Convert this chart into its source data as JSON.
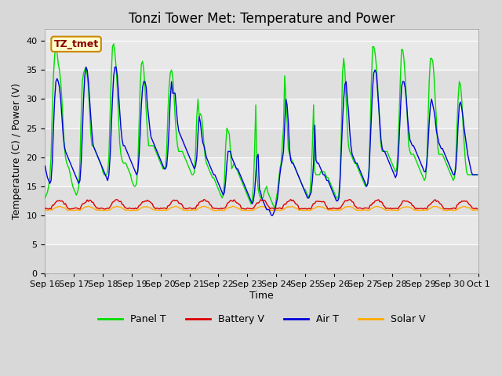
{
  "title": "Tonzi Tower Met: Temperature and Power",
  "ylabel": "Temperature (C) / Power (V)",
  "xlabel": "Time",
  "legend_label": "TZ_tmet",
  "ylim": [
    0,
    42
  ],
  "yticks": [
    0,
    5,
    10,
    15,
    20,
    25,
    30,
    35,
    40
  ],
  "xtick_labels": [
    "Sep 16",
    "Sep 17",
    "Sep 18",
    "Sep 19",
    "Sep 20",
    "Sep 21",
    "Sep 22",
    "Sep 23",
    "Sep 24",
    "Sep 25",
    "Sep 26",
    "Sep 27",
    "Sep 28",
    "Sep 29",
    "Sep 30",
    "Oct 1"
  ],
  "n_days": 15,
  "pts_per_day": 24,
  "panel_t_daily": [
    [
      13.0,
      13.5,
      14.0,
      15.0,
      16.5,
      20.0,
      28.0,
      34.0,
      37.5,
      39.0,
      38.0,
      36.0,
      35.0,
      33.0,
      30.0,
      26.0,
      22.0,
      20.0,
      19.0,
      18.5,
      18.0,
      17.0,
      16.0,
      15.0
    ],
    [
      14.5,
      14.0,
      13.5,
      14.0,
      15.0,
      19.0,
      27.0,
      33.0,
      34.5,
      35.0,
      35.5,
      34.0,
      32.0,
      28.0,
      24.0,
      22.0,
      22.0,
      21.5,
      21.0,
      20.5,
      20.0,
      19.5,
      19.0,
      18.5
    ],
    [
      17.5,
      17.0,
      17.0,
      17.0,
      17.5,
      20.0,
      27.0,
      34.0,
      39.0,
      39.5,
      38.0,
      35.5,
      32.0,
      27.0,
      22.5,
      20.5,
      19.5,
      19.0,
      19.0,
      19.0,
      18.5,
      18.0,
      17.5,
      17.0
    ],
    [
      16.0,
      15.5,
      15.0,
      15.0,
      15.5,
      18.0,
      25.0,
      32.0,
      36.0,
      36.5,
      35.0,
      32.0,
      28.0,
      24.5,
      22.0,
      22.0,
      22.0,
      22.0,
      22.0,
      21.5,
      21.0,
      20.5,
      20.0,
      19.5
    ],
    [
      19.0,
      18.5,
      18.0,
      18.0,
      18.5,
      21.0,
      27.5,
      32.0,
      34.5,
      35.0,
      34.0,
      31.0,
      27.0,
      24.0,
      22.0,
      21.0,
      21.0,
      21.0,
      21.0,
      20.5,
      20.0,
      19.5,
      19.0,
      18.5
    ],
    [
      18.0,
      17.5,
      17.0,
      17.0,
      17.5,
      21.0,
      27.0,
      30.0,
      27.0,
      27.5,
      27.0,
      25.0,
      22.0,
      20.0,
      19.0,
      18.5,
      18.0,
      17.5,
      17.0,
      16.5,
      16.5,
      16.0,
      15.5,
      15.0
    ],
    [
      14.5,
      14.0,
      13.5,
      13.0,
      13.5,
      16.0,
      22.0,
      25.0,
      24.5,
      24.0,
      21.0,
      18.0,
      18.5,
      19.0,
      18.5,
      18.0,
      17.5,
      17.0,
      16.5,
      16.0,
      15.5,
      15.0,
      14.5,
      14.0
    ],
    [
      13.5,
      13.0,
      12.5,
      12.0,
      12.5,
      15.0,
      21.0,
      29.0,
      17.0,
      14.5,
      13.5,
      13.0,
      13.0,
      13.0,
      14.0,
      14.5,
      15.0,
      14.0,
      13.5,
      13.0,
      12.5,
      12.0,
      11.5,
      11.0
    ],
    [
      13.0,
      14.0,
      16.0,
      18.0,
      19.0,
      22.0,
      25.0,
      34.0,
      30.0,
      26.0,
      21.5,
      20.5,
      20.0,
      19.5,
      19.0,
      18.5,
      18.0,
      17.5,
      17.0,
      16.5,
      16.0,
      15.5,
      15.0,
      14.5
    ],
    [
      14.5,
      14.0,
      13.5,
      13.0,
      14.0,
      17.0,
      22.0,
      29.0,
      17.5,
      17.0,
      17.0,
      17.0,
      17.0,
      17.5,
      17.5,
      17.5,
      17.5,
      17.0,
      16.5,
      16.5,
      16.0,
      15.5,
      15.0,
      14.5
    ],
    [
      14.0,
      13.5,
      13.0,
      13.0,
      13.5,
      17.0,
      24.0,
      34.5,
      37.0,
      35.0,
      30.0,
      25.0,
      22.0,
      21.0,
      20.5,
      20.0,
      19.5,
      19.0,
      19.0,
      18.5,
      18.0,
      17.5,
      17.0,
      16.5
    ],
    [
      16.0,
      15.5,
      15.0,
      15.0,
      15.5,
      18.0,
      25.0,
      33.0,
      39.0,
      39.0,
      38.0,
      36.0,
      33.0,
      29.0,
      25.0,
      22.0,
      21.0,
      21.0,
      21.0,
      21.0,
      21.0,
      20.5,
      20.0,
      19.5
    ],
    [
      19.0,
      18.5,
      18.0,
      17.5,
      18.0,
      21.0,
      27.0,
      33.0,
      38.5,
      38.5,
      37.0,
      34.0,
      30.5,
      26.0,
      22.0,
      21.0,
      20.5,
      20.5,
      20.5,
      20.0,
      19.5,
      19.0,
      18.5,
      18.0
    ],
    [
      17.5,
      17.0,
      16.5,
      16.0,
      16.5,
      19.0,
      26.0,
      33.0,
      37.0,
      37.0,
      36.5,
      34.0,
      30.0,
      26.5,
      22.0,
      20.5,
      20.5,
      20.5,
      20.5,
      20.0,
      19.5,
      19.0,
      18.5,
      18.0
    ],
    [
      17.5,
      17.0,
      16.5,
      16.0,
      16.5,
      19.0,
      25.0,
      30.0,
      33.0,
      32.5,
      30.0,
      26.0,
      22.5,
      19.5,
      17.5,
      17.0,
      17.0,
      17.0,
      17.0,
      17.0,
      17.0,
      17.0,
      17.0,
      17.0
    ]
  ],
  "air_t_daily": [
    [
      18.5,
      17.5,
      16.5,
      16.0,
      15.5,
      16.0,
      19.0,
      25.0,
      30.0,
      33.0,
      33.5,
      33.0,
      32.0,
      30.0,
      27.0,
      24.0,
      22.0,
      21.0,
      20.5,
      20.0,
      19.5,
      19.0,
      18.5,
      18.0
    ],
    [
      17.5,
      17.0,
      16.5,
      16.0,
      15.5,
      16.0,
      19.0,
      24.0,
      30.0,
      34.0,
      35.5,
      35.0,
      33.0,
      30.0,
      27.0,
      24.0,
      22.0,
      21.5,
      21.0,
      20.5,
      20.0,
      19.5,
      19.0,
      18.5
    ],
    [
      18.0,
      17.5,
      17.0,
      16.5,
      16.0,
      17.0,
      20.0,
      25.0,
      30.0,
      34.0,
      35.5,
      35.5,
      34.0,
      31.0,
      28.0,
      25.0,
      23.0,
      22.0,
      22.0,
      21.5,
      21.0,
      20.5,
      20.0,
      19.5
    ],
    [
      19.0,
      18.5,
      18.0,
      17.5,
      17.0,
      17.5,
      20.0,
      24.0,
      29.0,
      32.0,
      33.0,
      33.0,
      32.0,
      29.0,
      27.0,
      25.0,
      23.5,
      23.0,
      22.5,
      22.0,
      21.5,
      21.0,
      20.5,
      20.0
    ],
    [
      19.5,
      19.0,
      18.5,
      18.0,
      18.0,
      18.5,
      21.0,
      25.0,
      30.0,
      33.0,
      31.0,
      31.0,
      31.0,
      28.5,
      26.0,
      24.5,
      24.0,
      23.5,
      23.0,
      22.5,
      22.0,
      21.5,
      21.0,
      20.5
    ],
    [
      20.0,
      19.5,
      19.0,
      18.5,
      18.0,
      18.5,
      20.0,
      24.0,
      27.0,
      26.0,
      24.0,
      22.5,
      22.0,
      21.0,
      20.0,
      19.5,
      19.0,
      18.5,
      18.0,
      17.5,
      17.0,
      17.0,
      16.5,
      16.0
    ],
    [
      15.5,
      15.0,
      14.5,
      14.0,
      13.5,
      14.0,
      16.0,
      19.0,
      21.0,
      21.0,
      21.0,
      20.0,
      19.5,
      19.0,
      18.5,
      18.0,
      18.0,
      17.5,
      17.0,
      16.5,
      16.0,
      15.5,
      15.0,
      14.5
    ],
    [
      14.0,
      13.5,
      13.0,
      12.5,
      12.0,
      12.5,
      14.0,
      17.0,
      20.0,
      20.5,
      14.5,
      14.0,
      13.0,
      12.5,
      12.0,
      11.5,
      11.0,
      11.0,
      11.0,
      10.5,
      10.0,
      10.0,
      10.5,
      11.0
    ],
    [
      12.0,
      13.0,
      15.0,
      17.0,
      18.5,
      19.5,
      21.0,
      25.5,
      30.0,
      29.0,
      26.0,
      21.5,
      19.5,
      19.0,
      19.0,
      18.5,
      18.0,
      17.5,
      17.0,
      16.5,
      16.0,
      15.5,
      15.0,
      14.5
    ],
    [
      14.0,
      13.5,
      13.0,
      13.0,
      13.5,
      14.0,
      16.0,
      19.0,
      25.5,
      19.5,
      19.0,
      19.0,
      18.5,
      18.0,
      17.5,
      17.0,
      17.0,
      16.5,
      16.0,
      16.0,
      15.5,
      15.0,
      14.5,
      14.0
    ],
    [
      13.5,
      13.0,
      12.5,
      12.5,
      13.0,
      16.0,
      21.0,
      26.0,
      30.0,
      32.5,
      33.0,
      30.0,
      28.0,
      24.5,
      22.0,
      20.5,
      20.0,
      19.5,
      19.0,
      19.0,
      18.5,
      18.0,
      17.5,
      17.0
    ],
    [
      16.5,
      16.0,
      15.5,
      15.0,
      15.5,
      17.5,
      22.0,
      27.0,
      32.0,
      34.5,
      35.0,
      34.5,
      32.0,
      29.0,
      26.0,
      23.0,
      21.5,
      21.0,
      21.0,
      20.5,
      20.0,
      19.5,
      19.0,
      18.5
    ],
    [
      18.0,
      17.5,
      17.0,
      16.5,
      17.0,
      19.0,
      23.0,
      27.5,
      32.0,
      33.0,
      33.0,
      32.0,
      30.0,
      27.0,
      24.5,
      23.0,
      22.5,
      22.0,
      22.0,
      21.5,
      21.0,
      20.5,
      20.0,
      19.5
    ],
    [
      19.0,
      18.5,
      18.0,
      17.5,
      17.5,
      19.0,
      22.0,
      26.0,
      29.0,
      30.0,
      29.0,
      28.0,
      26.5,
      24.5,
      23.5,
      22.5,
      22.0,
      21.5,
      21.5,
      21.0,
      20.5,
      20.0,
      19.5,
      19.0
    ],
    [
      18.5,
      18.0,
      17.5,
      17.0,
      17.0,
      18.0,
      21.0,
      25.5,
      29.0,
      29.5,
      28.5,
      27.0,
      25.0,
      23.5,
      22.0,
      20.5,
      19.5,
      18.5,
      17.5,
      17.0,
      17.0,
      17.0,
      17.0,
      17.0
    ]
  ],
  "battery_v_base": 11.5,
  "battery_v_spike": 13.0,
  "solar_v_base": 11.0,
  "solar_v_spike": 11.5,
  "bg_color": "#d8d8d8",
  "plot_bg_color": "#e8e8e8",
  "grid_color": "#ffffff",
  "title_fontsize": 12,
  "axis_label_fontsize": 9,
  "tick_fontsize": 8,
  "linewidth": 1.0
}
